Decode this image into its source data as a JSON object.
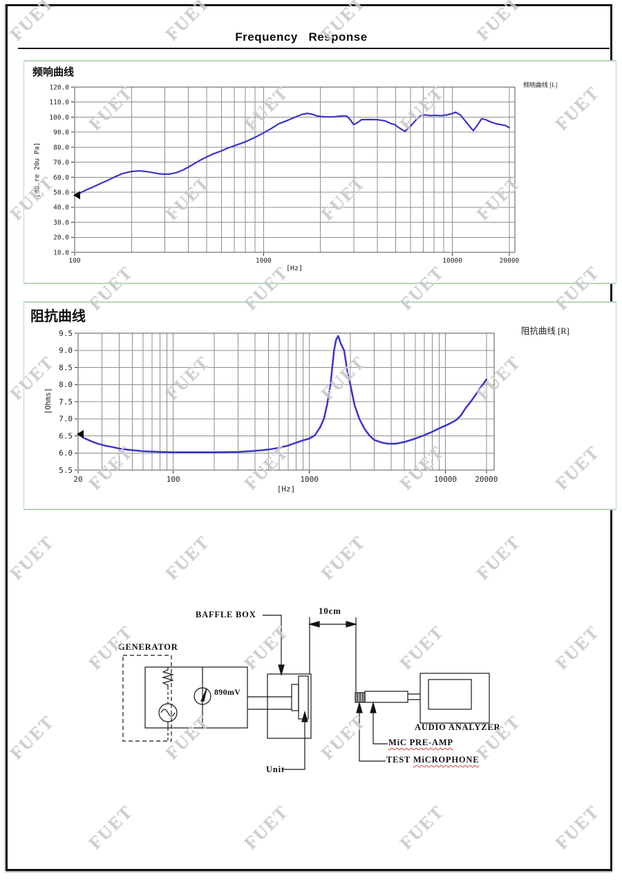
{
  "page": {
    "title": "Frequency   Response",
    "watermark": {
      "text": "FUET",
      "color": "#c6c6c6"
    }
  },
  "chart_data": [
    {
      "type": "line",
      "title": "频响曲线",
      "legend": "频响曲线 [L]",
      "xlabel": "[Hz]",
      "ylabel": "[dB re 20u Pa]",
      "x_scale": "log",
      "xlim": [
        100,
        20000
      ],
      "ylim": [
        10,
        120
      ],
      "grid": true,
      "legend_position": "top-right",
      "line_color": "#3b33c7",
      "xticks": [
        100,
        1000,
        10000,
        20000
      ],
      "xtick_labels": [
        "100",
        "1000",
        "10000",
        "20000"
      ],
      "yticks": [
        120,
        110,
        100,
        90,
        80,
        70,
        60,
        50,
        40,
        30,
        20,
        10
      ],
      "ytick_labels": [
        "120.0",
        "110.0",
        "100.0",
        "90.0",
        "80.0",
        "70.0",
        "60.0",
        "50.0",
        "40.0",
        "30.0",
        "20.0",
        "10.0"
      ],
      "points": [
        [
          100,
          48
        ],
        [
          107,
          49.5
        ],
        [
          115,
          51.5
        ],
        [
          125,
          53.5
        ],
        [
          137,
          55.8
        ],
        [
          150,
          58
        ],
        [
          165,
          60.5
        ],
        [
          180,
          62.5
        ],
        [
          200,
          63.8
        ],
        [
          220,
          64.2
        ],
        [
          240,
          63.8
        ],
        [
          260,
          63
        ],
        [
          280,
          62.3
        ],
        [
          300,
          62
        ],
        [
          320,
          62.2
        ],
        [
          345,
          63
        ],
        [
          375,
          64.8
        ],
        [
          410,
          67.5
        ],
        [
          450,
          70.5
        ],
        [
          490,
          73
        ],
        [
          540,
          75.5
        ],
        [
          590,
          77.2
        ],
        [
          650,
          79.5
        ],
        [
          720,
          81.5
        ],
        [
          800,
          83.5
        ],
        [
          900,
          86.5
        ],
        [
          1000,
          89.5
        ],
        [
          1100,
          92.5
        ],
        [
          1200,
          95.5
        ],
        [
          1350,
          98
        ],
        [
          1500,
          100.5
        ],
        [
          1600,
          101.8
        ],
        [
          1700,
          102.5
        ],
        [
          1800,
          102
        ],
        [
          1900,
          101
        ],
        [
          2000,
          100.4
        ],
        [
          2200,
          100.1
        ],
        [
          2400,
          100.3
        ],
        [
          2600,
          100.8
        ],
        [
          2750,
          100.8
        ],
        [
          2870,
          98.5
        ],
        [
          3000,
          95
        ],
        [
          3150,
          96.5
        ],
        [
          3300,
          98.3
        ],
        [
          3600,
          98.4
        ],
        [
          4000,
          98.3
        ],
        [
          4400,
          97.5
        ],
        [
          4700,
          95.8
        ],
        [
          4950,
          95
        ],
        [
          5200,
          93
        ],
        [
          5600,
          90.5
        ],
        [
          6000,
          94
        ],
        [
          6400,
          98
        ],
        [
          6800,
          101
        ],
        [
          7200,
          101.5
        ],
        [
          7600,
          101
        ],
        [
          8100,
          101.2
        ],
        [
          8700,
          101
        ],
        [
          9300,
          101.4
        ],
        [
          9900,
          102.3
        ],
        [
          10400,
          103.3
        ],
        [
          11000,
          101.5
        ],
        [
          11600,
          98
        ],
        [
          12200,
          94.5
        ],
        [
          12900,
          91
        ],
        [
          13600,
          95
        ],
        [
          14300,
          99
        ],
        [
          15000,
          98.3
        ],
        [
          16000,
          96.7
        ],
        [
          17000,
          95.6
        ],
        [
          18000,
          95
        ],
        [
          19000,
          94.5
        ],
        [
          20000,
          93
        ]
      ]
    },
    {
      "type": "line",
      "title": "阻抗曲线",
      "legend": "阻抗曲线 [R]",
      "xlabel": "[Hz]",
      "ylabel": "[Ohms]",
      "x_scale": "log",
      "xlim": [
        20,
        20000
      ],
      "ylim": [
        5.5,
        9.5
      ],
      "grid": true,
      "legend_position": "top-right",
      "line_color": "#3b33c7",
      "xticks": [
        20,
        100,
        1000,
        10000,
        20000
      ],
      "xtick_labels": [
        "20",
        "100",
        "1000",
        "10000",
        "20000"
      ],
      "yticks": [
        9.5,
        9.0,
        8.5,
        8.0,
        7.5,
        7.0,
        6.5,
        6.0,
        5.5
      ],
      "ytick_labels": [
        "9.5",
        "9.0",
        "8.5",
        "8.0",
        "7.5",
        "7.0",
        "6.5",
        "6.0",
        "5.5"
      ],
      "points": [
        [
          20,
          6.55
        ],
        [
          22,
          6.44
        ],
        [
          25,
          6.34
        ],
        [
          28,
          6.27
        ],
        [
          32,
          6.21
        ],
        [
          36,
          6.17
        ],
        [
          40,
          6.13
        ],
        [
          45,
          6.1
        ],
        [
          50,
          6.08
        ],
        [
          60,
          6.05
        ],
        [
          70,
          6.04
        ],
        [
          80,
          6.03
        ],
        [
          100,
          6.02
        ],
        [
          150,
          6.02
        ],
        [
          200,
          6.02
        ],
        [
          300,
          6.03
        ],
        [
          400,
          6.06
        ],
        [
          500,
          6.1
        ],
        [
          600,
          6.15
        ],
        [
          700,
          6.22
        ],
        [
          800,
          6.3
        ],
        [
          900,
          6.37
        ],
        [
          1000,
          6.42
        ],
        [
          1100,
          6.52
        ],
        [
          1200,
          6.75
        ],
        [
          1280,
          7.0
        ],
        [
          1350,
          7.4
        ],
        [
          1430,
          8.0
        ],
        [
          1520,
          9.0
        ],
        [
          1570,
          9.3
        ],
        [
          1630,
          9.42
        ],
        [
          1700,
          9.2
        ],
        [
          1800,
          9.0
        ],
        [
          1900,
          8.4
        ],
        [
          2000,
          8.0
        ],
        [
          2150,
          7.4
        ],
        [
          2330,
          7.0
        ],
        [
          2550,
          6.7
        ],
        [
          2780,
          6.5
        ],
        [
          3000,
          6.38
        ],
        [
          3430,
          6.3
        ],
        [
          3800,
          6.27
        ],
        [
          4300,
          6.27
        ],
        [
          5000,
          6.32
        ],
        [
          6000,
          6.42
        ],
        [
          7000,
          6.52
        ],
        [
          8000,
          6.62
        ],
        [
          9000,
          6.72
        ],
        [
          10000,
          6.8
        ],
        [
          11000,
          6.88
        ],
        [
          12000,
          6.96
        ],
        [
          13000,
          7.1
        ],
        [
          14000,
          7.3
        ],
        [
          15000,
          7.45
        ],
        [
          16000,
          7.6
        ],
        [
          17000,
          7.75
        ],
        [
          18000,
          7.9
        ],
        [
          19000,
          8.02
        ],
        [
          20000,
          8.15
        ]
      ]
    }
  ],
  "diagram": {
    "generator_label": "GENERATOR",
    "baffle_box_label": "BAFFLE BOX",
    "distance_label": "10cm",
    "voltage_label": "890mV",
    "unit_label": "Unit",
    "audio_analyzer_label": "AUDIO ANALYZER",
    "mic_preamp_label": "MiC PRE-AMP",
    "test_microphone_prefix": "TEST ",
    "test_microphone_word": "MiCROPHONE"
  }
}
